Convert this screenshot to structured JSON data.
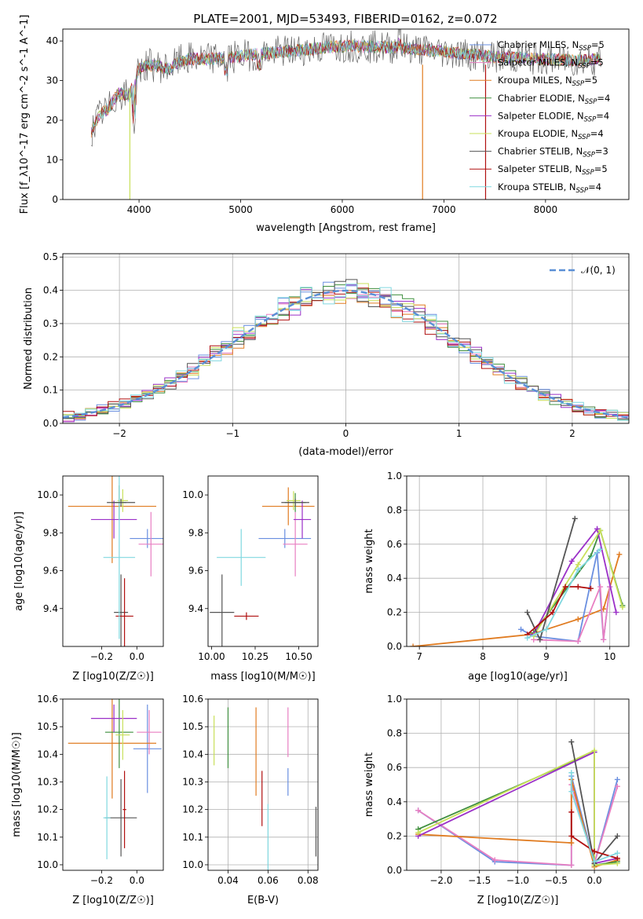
{
  "figure": {
    "title": "PLATE=2001, MJD=53493, FIBERID=0162, z=0.072",
    "colors": {
      "chabrier_miles": "#6a8fe0",
      "salpeter_miles": "#e87fc2",
      "kroupa_miles": "#e07b20",
      "chabrier_elodie": "#3f8f3f",
      "salpeter_elodie": "#9b30c8",
      "kroupa_elodie": "#c8e05a",
      "chabrier_stelib": "#555555",
      "salpeter_stelib": "#b01010",
      "kroupa_stelib": "#80d8e0",
      "normal": "#5a8fd6"
    }
  },
  "chart_data": [
    {
      "id": "spectrum",
      "type": "line",
      "title": "PLATE=2001, MJD=53493, FIBERID=0162, z=0.072",
      "xlabel": "wavelength [Angstrom, rest frame]",
      "ylabel": "Flux [f_λ10^-17 erg cm^-2 s^-1 A^-1]",
      "xlim": [
        3250,
        8820
      ],
      "ylim": [
        0,
        43
      ],
      "xticks": [
        4000,
        5000,
        6000,
        7000,
        8000
      ],
      "yticks": [
        0,
        10,
        20,
        30,
        40
      ],
      "legend_position": "top-right",
      "continuum": {
        "x": [
          3530,
          3600,
          3700,
          3800,
          3900,
          4000,
          4100,
          4200,
          4300,
          4400,
          4500,
          4700,
          4900,
          5100,
          5300,
          5500,
          5700,
          5900,
          6100,
          6300,
          6500,
          6700,
          6900,
          7100,
          7300,
          7500,
          7700,
          7900,
          8100,
          8300,
          8550
        ],
        "y": [
          17,
          21,
          23,
          27,
          26,
          33,
          34,
          33.5,
          33,
          35,
          35.5,
          35.5,
          35.8,
          36.5,
          37,
          37.5,
          38,
          38.5,
          38.8,
          38.5,
          38.3,
          38,
          37.5,
          37,
          36.5,
          36,
          35.8,
          35.5,
          35.3,
          35,
          35.5
        ]
      },
      "series": [
        {
          "name": "Chabrier MILES, N_SSP=5",
          "color_key": "chabrier_miles"
        },
        {
          "name": "Salpeter MILES, N_SSP=5",
          "color_key": "salpeter_miles"
        },
        {
          "name": "Kroupa MILES, N_SSP=5",
          "color_key": "kroupa_miles"
        },
        {
          "name": "Chabrier ELODIE, N_SSP=4",
          "color_key": "chabrier_elodie"
        },
        {
          "name": "Salpeter ELODIE, N_SSP=4",
          "color_key": "salpeter_elodie"
        },
        {
          "name": "Kroupa ELODIE, N_SSP=4",
          "color_key": "kroupa_elodie"
        },
        {
          "name": "Chabrier STELIB, N_SSP=3",
          "color_key": "chabrier_stelib"
        },
        {
          "name": "Salpeter STELIB, N_SSP=5",
          "color_key": "salpeter_stelib"
        },
        {
          "name": "Kroupa STELIB, N_SSP=4",
          "color_key": "kroupa_stelib"
        }
      ]
    },
    {
      "id": "residuals",
      "type": "line",
      "xlabel": "(data-model)/error",
      "ylabel": "Normed distribution",
      "xlim": [
        -2.5,
        2.5
      ],
      "ylim": [
        0,
        0.51
      ],
      "xticks": [
        -2,
        -1,
        0,
        1,
        2
      ],
      "yticks": [
        0.0,
        0.1,
        0.2,
        0.3,
        0.4,
        0.5
      ],
      "grid": true,
      "legend_position": "top-right",
      "legend": "N(0,1)"
    },
    {
      "id": "age_vs_Z",
      "type": "scatter",
      "xlabel": "Z [log10(Z/Z☉)]",
      "ylabel": "age [log10(age/yr)]",
      "xlim": [
        -0.42,
        0.15
      ],
      "ylim": [
        9.2,
        10.1
      ],
      "xticks": [
        -0.2,
        0.0
      ],
      "yticks": [
        9.4,
        9.6,
        9.8,
        10.0
      ],
      "errorbars": [
        {
          "color_key": "chabrier_miles",
          "x": 0.06,
          "y": 9.77,
          "xerr": 0.1,
          "yerr": 0.05
        },
        {
          "color_key": "salpeter_miles",
          "x": 0.08,
          "y": 9.74,
          "xerr": 0.07,
          "yerr": 0.17
        },
        {
          "color_key": "kroupa_miles",
          "x": -0.14,
          "y": 9.94,
          "xerr": 0.25,
          "yerr": 0.3
        },
        {
          "color_key": "chabrier_elodie",
          "x": -0.1,
          "y": 9.96,
          "xerr": 0.04,
          "yerr": 0.09
        },
        {
          "color_key": "salpeter_elodie",
          "x": -0.13,
          "y": 9.87,
          "xerr": 0.13,
          "yerr": 0.1
        },
        {
          "color_key": "kroupa_elodie",
          "x": -0.08,
          "y": 9.97,
          "xerr": 0.03,
          "yerr": 0.06
        },
        {
          "color_key": "chabrier_stelib",
          "x": -0.09,
          "y": 9.38,
          "xerr": 0.04,
          "yerr": 0.2
        },
        {
          "color_key": "salpeter_stelib",
          "x": -0.07,
          "y": 9.36,
          "xerr": 0.05,
          "yerr": 0.2
        },
        {
          "color_key": "kroupa_stelib",
          "x": -0.1,
          "y": 9.67,
          "xerr": 0.09,
          "yerr": 0.43
        },
        {
          "color_key": "chabrier_stelib",
          "x": -0.09,
          "y": 9.96,
          "xerr": 0.08,
          "yerr": 0.02
        }
      ]
    },
    {
      "id": "age_vs_mass",
      "type": "scatter",
      "xlabel": "mass [log10(M/M☉)]",
      "ylabel": "",
      "xlim": [
        9.98,
        10.61
      ],
      "ylim": [
        9.2,
        10.1
      ],
      "xticks": [
        10.0,
        10.25,
        10.5
      ],
      "yticks": [
        9.4,
        9.6,
        9.8,
        10.0
      ],
      "errorbars": [
        {
          "color_key": "chabrier_miles",
          "x": 10.42,
          "y": 9.77,
          "xerr": 0.15,
          "yerr": 0.05
        },
        {
          "color_key": "salpeter_miles",
          "x": 10.48,
          "y": 9.74,
          "xerr": 0.07,
          "yerr": 0.17
        },
        {
          "color_key": "kroupa_miles",
          "x": 10.44,
          "y": 9.94,
          "xerr": 0.15,
          "yerr": 0.1
        },
        {
          "color_key": "chabrier_elodie",
          "x": 10.48,
          "y": 9.96,
          "xerr": 0.06,
          "yerr": 0.05
        },
        {
          "color_key": "salpeter_elodie",
          "x": 10.52,
          "y": 9.87,
          "xerr": 0.05,
          "yerr": 0.1
        },
        {
          "color_key": "kroupa_elodie",
          "x": 10.47,
          "y": 9.97,
          "xerr": 0.04,
          "yerr": 0.05
        },
        {
          "color_key": "chabrier_stelib",
          "x": 10.06,
          "y": 9.38,
          "xerr": 0.07,
          "yerr": 0.2
        },
        {
          "color_key": "salpeter_stelib",
          "x": 10.2,
          "y": 9.36,
          "xerr": 0.07,
          "yerr": 0.02
        },
        {
          "color_key": "kroupa_stelib",
          "x": 10.17,
          "y": 9.67,
          "xerr": 0.14,
          "yerr": 0.15
        },
        {
          "color_key": "chabrier_stelib",
          "x": 10.48,
          "y": 9.96,
          "xerr": 0.08,
          "yerr": 0.02
        }
      ]
    },
    {
      "id": "weight_vs_age",
      "type": "line",
      "xlabel": "age [log10(age/yr)]",
      "ylabel": "mass weight",
      "xlim": [
        6.8,
        10.3
      ],
      "ylim": [
        0,
        1.0
      ],
      "xticks": [
        7,
        8,
        9,
        10
      ],
      "yticks": [
        0.0,
        0.2,
        0.4,
        0.6,
        0.8,
        1.0
      ],
      "grid": true,
      "series": [
        {
          "color_key": "kroupa_miles",
          "x": [
            6.9,
            8.75,
            9.0,
            9.5,
            9.9,
            10.15
          ],
          "y": [
            0.0,
            0.07,
            0.1,
            0.16,
            0.22,
            0.54
          ]
        },
        {
          "color_key": "chabrier_miles",
          "x": [
            8.6,
            8.8,
            9.5,
            9.8,
            9.9,
            10.0
          ],
          "y": [
            0.1,
            0.06,
            0.03,
            0.55,
            0.04,
            0.35
          ]
        },
        {
          "color_key": "salpeter_miles",
          "x": [
            8.8,
            9.5,
            9.85,
            9.9,
            10.0
          ],
          "y": [
            0.04,
            0.03,
            0.35,
            0.04,
            0.35
          ]
        },
        {
          "color_key": "chabrier_elodie",
          "x": [
            8.8,
            9.7,
            9.85,
            10.2
          ],
          "y": [
            0.08,
            0.53,
            0.68,
            0.24
          ]
        },
        {
          "color_key": "salpeter_elodie",
          "x": [
            8.8,
            9.4,
            9.8,
            10.1
          ],
          "y": [
            0.07,
            0.5,
            0.69,
            0.2
          ]
        },
        {
          "color_key": "kroupa_elodie",
          "x": [
            8.8,
            9.5,
            9.85,
            10.2
          ],
          "y": [
            0.06,
            0.48,
            0.68,
            0.23
          ]
        },
        {
          "color_key": "chabrier_stelib",
          "x": [
            8.7,
            8.9,
            9.45
          ],
          "y": [
            0.2,
            0.04,
            0.75
          ]
        },
        {
          "color_key": "salpeter_stelib",
          "x": [
            8.7,
            9.1,
            9.3,
            9.5,
            9.7
          ],
          "y": [
            0.07,
            0.2,
            0.35,
            0.35,
            0.34
          ]
        },
        {
          "color_key": "kroupa_stelib",
          "x": [
            8.7,
            9.0,
            9.5,
            9.85
          ],
          "y": [
            0.05,
            0.1,
            0.45,
            0.57
          ]
        }
      ]
    },
    {
      "id": "mass_vs_Z",
      "type": "scatter",
      "xlabel": "Z [log10(Z/Z☉)]",
      "ylabel": "mass [log10(M/M☉)]",
      "xlim": [
        -0.42,
        0.15
      ],
      "ylim": [
        9.98,
        10.6
      ],
      "xticks": [
        -0.2,
        0.0
      ],
      "yticks": [
        10.0,
        10.1,
        10.2,
        10.3,
        10.4,
        10.5,
        10.6
      ],
      "errorbars": [
        {
          "color_key": "chabrier_miles",
          "x": 0.06,
          "y": 10.42,
          "xerr": 0.08,
          "yerr": 0.16
        },
        {
          "color_key": "salpeter_miles",
          "x": 0.07,
          "y": 10.48,
          "xerr": 0.07,
          "yerr": 0.08
        },
        {
          "color_key": "kroupa_miles",
          "x": -0.14,
          "y": 10.44,
          "xerr": 0.25,
          "yerr": 0.2
        },
        {
          "color_key": "chabrier_elodie",
          "x": -0.1,
          "y": 10.48,
          "xerr": 0.08,
          "yerr": 0.13
        },
        {
          "color_key": "salpeter_elodie",
          "x": -0.13,
          "y": 10.53,
          "xerr": 0.13,
          "yerr": 0.05
        },
        {
          "color_key": "kroupa_elodie",
          "x": -0.08,
          "y": 10.47,
          "xerr": 0.04,
          "yerr": 0.09
        },
        {
          "color_key": "chabrier_stelib",
          "x": -0.09,
          "y": 10.17,
          "xerr": 0.09,
          "yerr": 0.14
        },
        {
          "color_key": "salpeter_stelib",
          "x": -0.07,
          "y": 10.2,
          "xerr": 0.01,
          "yerr": 0.14
        },
        {
          "color_key": "kroupa_stelib",
          "x": -0.17,
          "y": 10.17,
          "xerr": 0.02,
          "yerr": 0.15
        }
      ]
    },
    {
      "id": "mass_vs_ebv",
      "type": "scatter",
      "xlabel": "E(B-V)",
      "ylabel": "",
      "xlim": [
        0.03,
        0.085
      ],
      "ylim": [
        9.98,
        10.6
      ],
      "xticks": [
        0.04,
        0.06,
        0.08
      ],
      "yticks": [
        10.0,
        10.1,
        10.2,
        10.3,
        10.4,
        10.5,
        10.6
      ],
      "grid": true,
      "errorbars": [
        {
          "color_key": "kroupa_elodie",
          "x": 0.033,
          "y": 10.45,
          "xerr": 0,
          "yerr": 0.09
        },
        {
          "color_key": "chabrier_elodie",
          "x": 0.04,
          "y": 10.46,
          "xerr": 0,
          "yerr": 0.11
        },
        {
          "color_key": "kroupa_miles",
          "x": 0.054,
          "y": 10.41,
          "xerr": 0,
          "yerr": 0.16
        },
        {
          "color_key": "salpeter_stelib",
          "x": 0.057,
          "y": 10.24,
          "xerr": 0,
          "yerr": 0.1
        },
        {
          "color_key": "kroupa_stelib",
          "x": 0.06,
          "y": 10.1,
          "xerr": 0,
          "yerr": 0.12
        },
        {
          "color_key": "chabrier_miles",
          "x": 0.07,
          "y": 10.3,
          "xerr": 0,
          "yerr": 0.05
        },
        {
          "color_key": "salpeter_miles",
          "x": 0.07,
          "y": 10.48,
          "xerr": 0,
          "yerr": 0.09
        },
        {
          "color_key": "chabrier_stelib",
          "x": 0.084,
          "y": 10.12,
          "xerr": 0,
          "yerr": 0.09
        }
      ]
    },
    {
      "id": "weight_vs_Z",
      "type": "line",
      "xlabel": "Z [log10(Z/Z☉)]",
      "ylabel": "mass weight",
      "xlim": [
        -2.45,
        0.45
      ],
      "ylim": [
        0,
        1.0
      ],
      "xticks": [
        -2.0,
        -1.5,
        -1.0,
        -0.5,
        0.0
      ],
      "yticks": [
        0.0,
        0.2,
        0.4,
        0.6,
        0.8,
        1.0
      ],
      "grid": true,
      "series": [
        {
          "color_key": "chabrier_miles",
          "x": [
            -2.3,
            -1.3,
            -0.3,
            -0.3,
            0.0,
            0.3
          ],
          "y": [
            0.35,
            0.05,
            0.03,
            0.55,
            0.04,
            0.53
          ]
        },
        {
          "color_key": "salpeter_miles",
          "x": [
            -2.3,
            -1.3,
            -0.3,
            -0.3,
            0.0,
            0.3
          ],
          "y": [
            0.35,
            0.06,
            0.03,
            0.5,
            0.04,
            0.49
          ]
        },
        {
          "color_key": "kroupa_miles",
          "x": [
            -2.3,
            -0.3,
            -0.3,
            0.0,
            0.3
          ],
          "y": [
            0.21,
            0.16,
            0.53,
            0.02,
            0.06
          ]
        },
        {
          "color_key": "chabrier_elodie",
          "x": [
            -2.3,
            0.0,
            0.0,
            0.3
          ],
          "y": [
            0.24,
            0.69,
            0.03,
            0.05
          ]
        },
        {
          "color_key": "salpeter_elodie",
          "x": [
            -2.3,
            0.0,
            0.0,
            0.3
          ],
          "y": [
            0.2,
            0.69,
            0.04,
            0.07
          ]
        },
        {
          "color_key": "kroupa_elodie",
          "x": [
            -2.3,
            0.0,
            0.0,
            0.3
          ],
          "y": [
            0.22,
            0.7,
            0.03,
            0.04
          ]
        },
        {
          "color_key": "chabrier_stelib",
          "x": [
            -0.3,
            0.0,
            0.3
          ],
          "y": [
            0.75,
            0.04,
            0.2
          ]
        },
        {
          "color_key": "salpeter_stelib",
          "x": [
            -0.3,
            -0.3,
            0.0,
            0.3
          ],
          "y": [
            0.34,
            0.2,
            0.11,
            0.07
          ]
        },
        {
          "color_key": "kroupa_stelib",
          "x": [
            -0.3,
            -0.3,
            0.0,
            0.3
          ],
          "y": [
            0.57,
            0.46,
            0.05,
            0.1
          ]
        }
      ]
    }
  ]
}
